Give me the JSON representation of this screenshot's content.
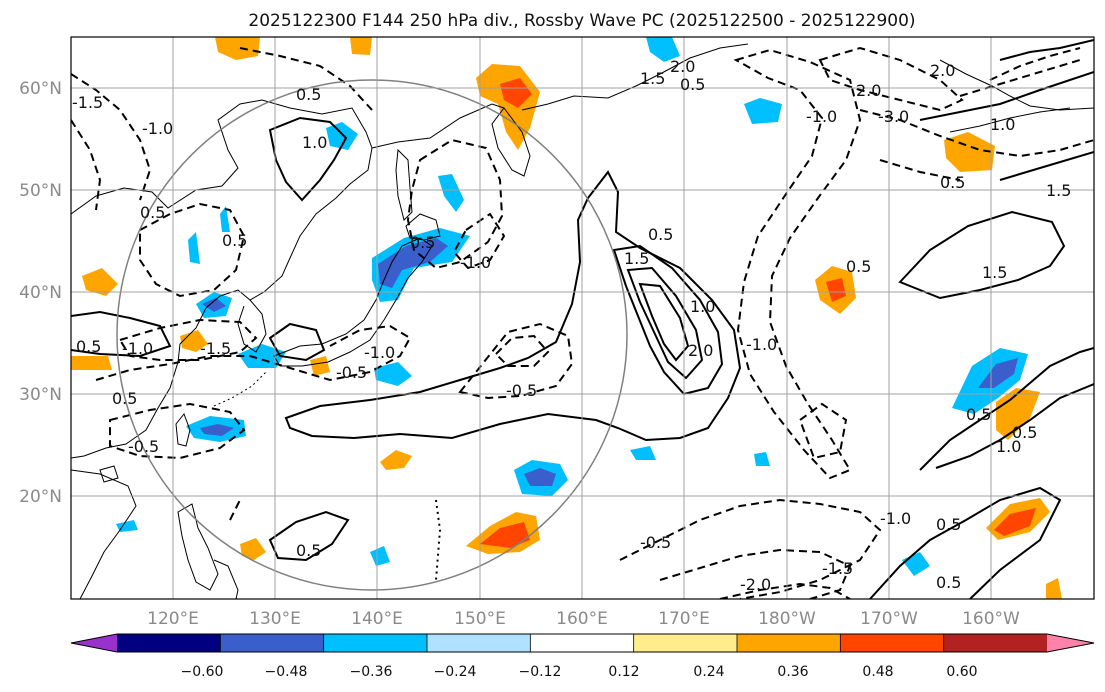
{
  "title": "2025122300 F144 250 hPa div., Rossby Wave PC (2025122500 - 2025122900)",
  "lat_labels": [
    "60°N",
    "50°N",
    "40°N",
    "30°N",
    "20°N"
  ],
  "lon_labels": [
    "120°E",
    "130°E",
    "140°E",
    "150°E",
    "160°E",
    "170°E",
    "180°W",
    "170°W",
    "160°W"
  ],
  "colorbar": {
    "ticks": [
      "−0.60",
      "−0.48",
      "−0.36",
      "−0.24",
      "−0.12",
      "0.12",
      "0.24",
      "0.36",
      "0.48",
      "0.60"
    ],
    "colors": [
      "#9932cc",
      "#000080",
      "#3a5fcd",
      "#00bfff",
      "#b0e2ff",
      "#ffffff",
      "#ffec8b",
      "#ffa500",
      "#ff4500",
      "#b22222",
      "#ff82ab"
    ]
  },
  "contour_labels": [
    "0.5",
    "1.0",
    "1.5",
    "2.0",
    "-0.5",
    "-1.0",
    "-1.5",
    "-2.0",
    "-3.0"
  ]
}
